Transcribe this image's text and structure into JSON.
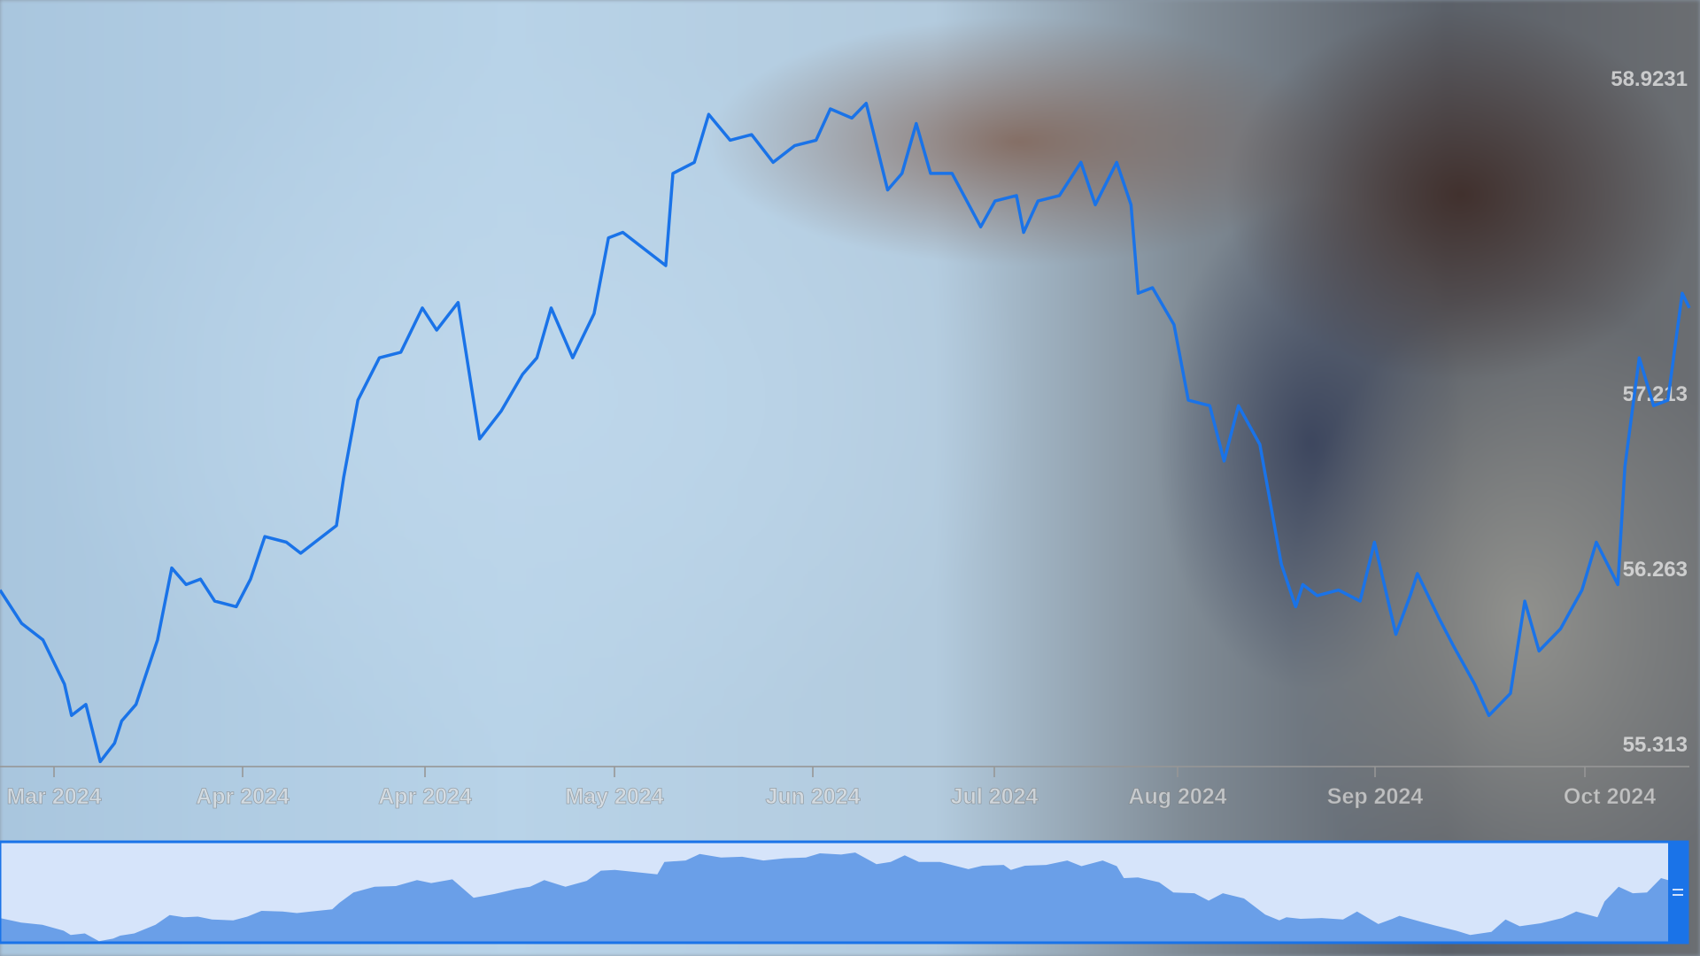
{
  "chart_data": {
    "type": "line",
    "title": "",
    "xlabel": "",
    "ylabel": "",
    "x_tick_labels": [
      "Mar 2024",
      "Apr 2024",
      "Apr 2024",
      "May 2024",
      "Jun 2024",
      "Jul 2024",
      "Aug 2024",
      "Sep 2024",
      "Oct 2024"
    ],
    "y_tick_labels": [
      "58.9231",
      "57.213",
      "56.263",
      "55.313"
    ],
    "y_ticks": [
      58.9231,
      57.213,
      56.263,
      55.313
    ],
    "ylim": [
      55.313,
      58.9231
    ],
    "xlim": [
      "2024-02-22",
      "2024-10-15"
    ],
    "grid": false,
    "line_color": "#1a73e8",
    "navigator": {
      "fill_color": "#6a9fe8",
      "background_color": "#d6e4fa",
      "border_color": "#1a73e8"
    },
    "series": [
      {
        "x": [
          "2024-02-22",
          "2024-02-25",
          "2024-02-28",
          "2024-03-02",
          "2024-03-03",
          "2024-03-05",
          "2024-03-07",
          "2024-03-09",
          "2024-03-10",
          "2024-03-12",
          "2024-03-15",
          "2024-03-17",
          "2024-03-19",
          "2024-03-21",
          "2024-03-23",
          "2024-03-26",
          "2024-03-28",
          "2024-03-30",
          "2024-04-02",
          "2024-04-04",
          "2024-04-06",
          "2024-04-09",
          "2024-04-10",
          "2024-04-12",
          "2024-04-15",
          "2024-04-18",
          "2024-04-21",
          "2024-04-23",
          "2024-04-26",
          "2024-04-29",
          "2024-05-02",
          "2024-05-05",
          "2024-05-07",
          "2024-05-09",
          "2024-05-12",
          "2024-05-15",
          "2024-05-17",
          "2024-05-19",
          "2024-05-22",
          "2024-05-25",
          "2024-05-26",
          "2024-05-29",
          "2024-05-31",
          "2024-06-03",
          "2024-06-06",
          "2024-06-09",
          "2024-06-12",
          "2024-06-15",
          "2024-06-17",
          "2024-06-20",
          "2024-06-22",
          "2024-06-25",
          "2024-06-27",
          "2024-06-29",
          "2024-07-01",
          "2024-07-04",
          "2024-07-08",
          "2024-07-10",
          "2024-07-13",
          "2024-07-14",
          "2024-07-16",
          "2024-07-19",
          "2024-07-22",
          "2024-07-24",
          "2024-07-27",
          "2024-07-29",
          "2024-07-30",
          "2024-08-01",
          "2024-08-04",
          "2024-08-06",
          "2024-08-09",
          "2024-08-11",
          "2024-08-13",
          "2024-08-16",
          "2024-08-19",
          "2024-08-21",
          "2024-08-22",
          "2024-08-24",
          "2024-08-27",
          "2024-08-30",
          "2024-09-01",
          "2024-09-04",
          "2024-09-06",
          "2024-09-07",
          "2024-09-10",
          "2024-09-12",
          "2024-09-15",
          "2024-09-17",
          "2024-09-20",
          "2024-09-22",
          "2024-09-24",
          "2024-09-27",
          "2024-09-30",
          "2024-10-02",
          "2024-10-05",
          "2024-10-06",
          "2024-10-08",
          "2024-10-10",
          "2024-10-12",
          "2024-10-14",
          "2024-10-15"
        ],
        "y": [
          56.15,
          55.97,
          55.88,
          55.64,
          55.47,
          55.53,
          55.22,
          55.32,
          55.44,
          55.53,
          55.88,
          56.27,
          56.18,
          56.21,
          56.09,
          56.06,
          56.21,
          56.44,
          56.41,
          56.35,
          56.41,
          56.5,
          56.76,
          57.18,
          57.41,
          57.44,
          57.68,
          57.56,
          57.71,
          56.97,
          57.12,
          57.32,
          57.41,
          57.68,
          57.41,
          57.65,
          58.06,
          58.09,
          58.0,
          57.91,
          58.41,
          58.47,
          58.73,
          58.59,
          58.62,
          58.47,
          58.56,
          58.59,
          58.76,
          58.71,
          58.79,
          58.32,
          58.41,
          58.68,
          58.41,
          58.41,
          58.12,
          58.26,
          58.29,
          58.09,
          58.26,
          58.29,
          58.47,
          58.24,
          58.47,
          58.24,
          57.76,
          57.79,
          57.59,
          57.18,
          57.15,
          56.85,
          57.15,
          56.94,
          56.29,
          56.06,
          56.18,
          56.12,
          56.15,
          56.09,
          56.41,
          55.91,
          56.12,
          56.24,
          56.0,
          55.85,
          55.64,
          55.47,
          55.59,
          56.09,
          55.82,
          55.94,
          56.15,
          56.41,
          56.18,
          56.82,
          57.41,
          57.15,
          57.18,
          57.76,
          57.68
        ]
      }
    ]
  }
}
